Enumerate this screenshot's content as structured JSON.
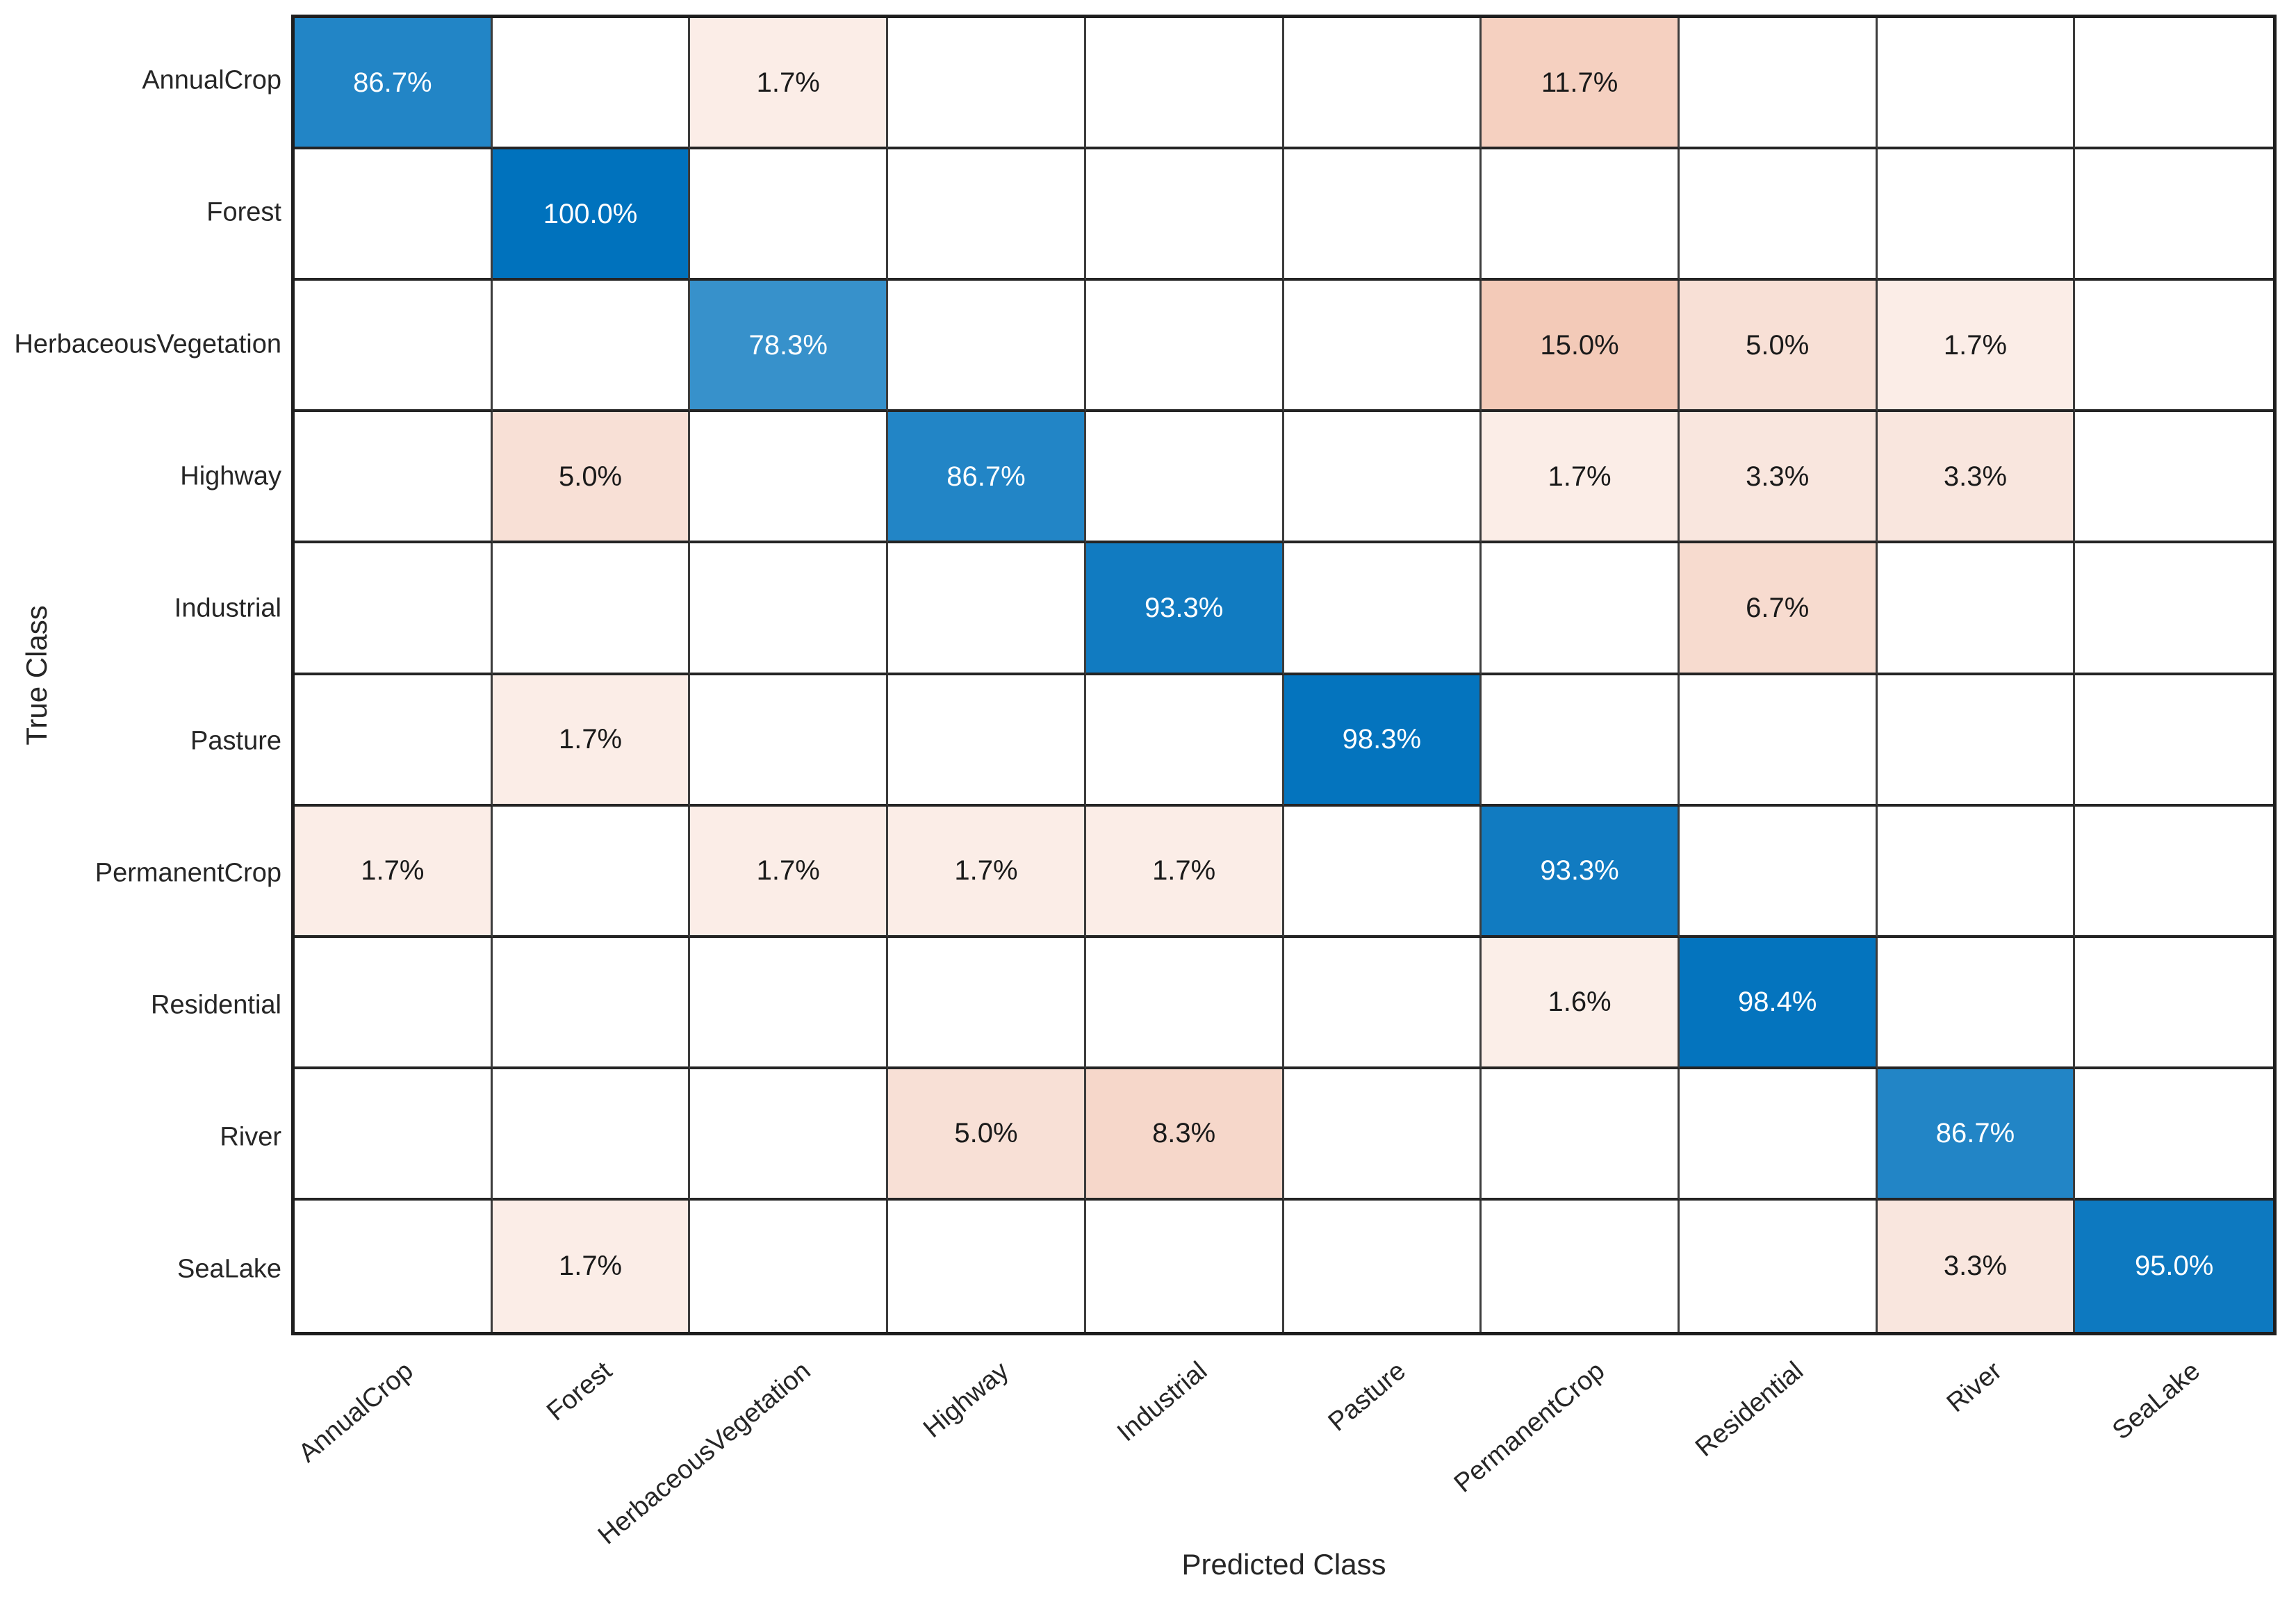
{
  "chart_data": {
    "type": "heatmap",
    "subtype": "confusion-matrix",
    "title": "",
    "xlabel": "Predicted Class",
    "ylabel": "True Class",
    "unit": "percent",
    "value_format": "one-decimal-percent",
    "classes": [
      "AnnualCrop",
      "Forest",
      "HerbaceousVegetation",
      "Highway",
      "Industrial",
      "Pasture",
      "PermanentCrop",
      "Residential",
      "River",
      "SeaLake"
    ],
    "matrix": [
      [
        86.7,
        null,
        1.7,
        null,
        null,
        null,
        11.7,
        null,
        null,
        null
      ],
      [
        null,
        100.0,
        null,
        null,
        null,
        null,
        null,
        null,
        null,
        null
      ],
      [
        null,
        null,
        78.3,
        null,
        null,
        null,
        15.0,
        5.0,
        1.7,
        null
      ],
      [
        null,
        5.0,
        null,
        86.7,
        null,
        null,
        1.7,
        3.3,
        3.3,
        null
      ],
      [
        null,
        null,
        null,
        null,
        93.3,
        null,
        null,
        6.7,
        null,
        null
      ],
      [
        null,
        1.7,
        null,
        null,
        null,
        98.3,
        null,
        null,
        null,
        null
      ],
      [
        1.7,
        null,
        1.7,
        1.7,
        1.7,
        null,
        93.3,
        null,
        null,
        null
      ],
      [
        null,
        null,
        null,
        null,
        null,
        null,
        1.6,
        98.4,
        null,
        null
      ],
      [
        null,
        null,
        null,
        5.0,
        8.3,
        null,
        null,
        null,
        86.7,
        null
      ],
      [
        null,
        1.7,
        null,
        null,
        null,
        null,
        null,
        null,
        3.3,
        95.0
      ]
    ],
    "colors": {
      "diagonal_full": "#0072BD",
      "offdiagonal_full": "#D95319",
      "empty_cell": "#ffffff",
      "diagonal_text": "#ffffff",
      "offdiagonal_text": "#1a1a1a",
      "gridline": "#2a2a2a"
    },
    "layout_hints": {
      "x_tick_rotation_deg": -40,
      "grid": "on",
      "legend": "none"
    }
  }
}
